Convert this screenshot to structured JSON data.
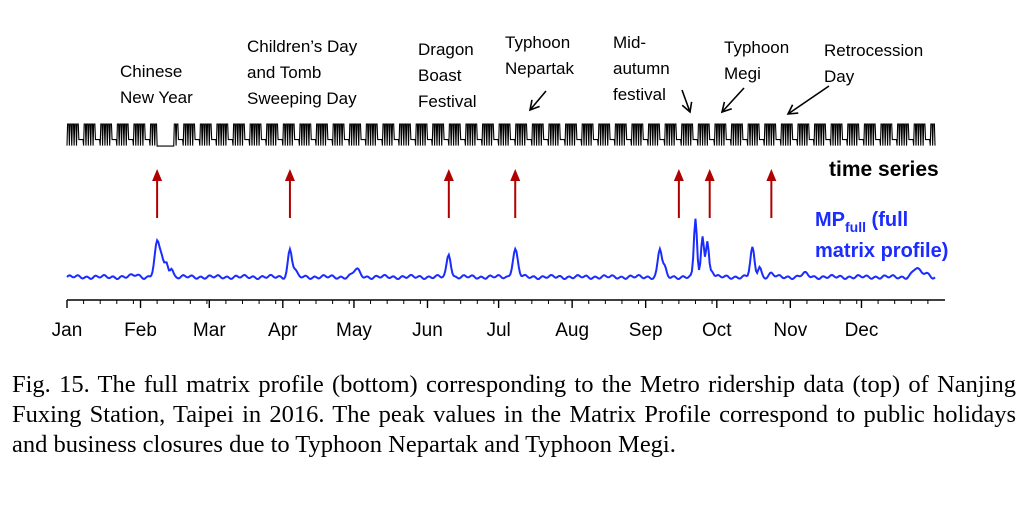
{
  "chart_data": {
    "type": "line",
    "months": [
      "Jan",
      "Feb",
      "Mar",
      "Apr",
      "May",
      "Jun",
      "Jul",
      "Aug",
      "Sep",
      "Oct",
      "Nov",
      "Dec"
    ],
    "xlim_days": [
      0,
      366
    ],
    "series": [
      {
        "name": "time series",
        "color": "#000000",
        "description_values": "daily ridership pattern, weekly periodic",
        "low_days": [
          [
            38,
            45
          ]
        ]
      },
      {
        "name": "MPfull (full matrix profile)",
        "label_main": "MP",
        "label_sub": "full",
        "label_rest1": " (full",
        "label_rest2": "matrix profile)",
        "color": "#1a2cff",
        "baseline": 0.06,
        "peaks": [
          {
            "day": 38,
            "value": 0.38,
            "width": 1.5
          },
          {
            "day": 40,
            "value": 0.22,
            "width": 1.2
          },
          {
            "day": 42,
            "value": 0.18,
            "width": 1.0
          },
          {
            "day": 44,
            "value": 0.15,
            "width": 1.0
          },
          {
            "day": 29,
            "value": 0.08,
            "width": 2.0
          },
          {
            "day": 57,
            "value": 0.06,
            "width": 2.0
          },
          {
            "day": 94,
            "value": 0.32,
            "width": 1.2
          },
          {
            "day": 96,
            "value": 0.12,
            "width": 1.2
          },
          {
            "day": 122,
            "value": 0.13,
            "width": 2.0
          },
          {
            "day": 161,
            "value": 0.28,
            "width": 1.2
          },
          {
            "day": 189,
            "value": 0.32,
            "width": 1.5
          },
          {
            "day": 250,
            "value": 0.33,
            "width": 1.2
          },
          {
            "day": 252,
            "value": 0.14,
            "width": 1.0
          },
          {
            "day": 265,
            "value": 0.62,
            "width": 0.9
          },
          {
            "day": 268,
            "value": 0.45,
            "width": 0.9
          },
          {
            "day": 270,
            "value": 0.4,
            "width": 0.9
          },
          {
            "day": 272,
            "value": 0.12,
            "width": 1.0
          },
          {
            "day": 289,
            "value": 0.33,
            "width": 1.2
          },
          {
            "day": 292,
            "value": 0.16,
            "width": 1.0
          },
          {
            "day": 297,
            "value": 0.09,
            "width": 1.5
          },
          {
            "day": 311,
            "value": 0.09,
            "width": 2.0
          },
          {
            "day": 358,
            "value": 0.14,
            "width": 2.0
          },
          {
            "day": 362,
            "value": 0.1,
            "width": 2.0
          }
        ]
      }
    ],
    "annotations": [
      {
        "id": "chinese-new-year",
        "lines": [
          "Chinese",
          "New Year"
        ],
        "arrow_day": 38
      },
      {
        "id": "childrens-day",
        "lines": [
          "Children’s  Day",
          "and Tomb",
          "Sweeping  Day"
        ],
        "arrow_day": 94
      },
      {
        "id": "dragon-boat",
        "lines": [
          "Dragon",
          "Boast",
          "Festival"
        ],
        "arrow_day": 161
      },
      {
        "id": "typhoon-nepartak",
        "lines": [
          "Typhoon",
          "Nepartak"
        ],
        "arrow_day": 189
      },
      {
        "id": "mid-autumn",
        "lines": [
          "Mid-",
          "autumn",
          "festival"
        ],
        "arrow_day": 258
      },
      {
        "id": "typhoon-megi",
        "lines": [
          "Typhoon",
          "Megi"
        ],
        "arrow_day": 271
      },
      {
        "id": "retrocession",
        "lines": [
          "Retrocession",
          "Day"
        ],
        "arrow_day": 297
      }
    ],
    "time_series_label": "time series",
    "arrow_color": "#b00000",
    "grid": false
  },
  "caption": "Fig. 15. The full matrix profile (bottom) corresponding to the Metro ridership data (top) of Nanjing Fuxing Station, Taipei in 2016. The peak values in the Matrix Profile correspond to public holidays and business closures due to Typhoon Nepartak and Typhoon Megi."
}
